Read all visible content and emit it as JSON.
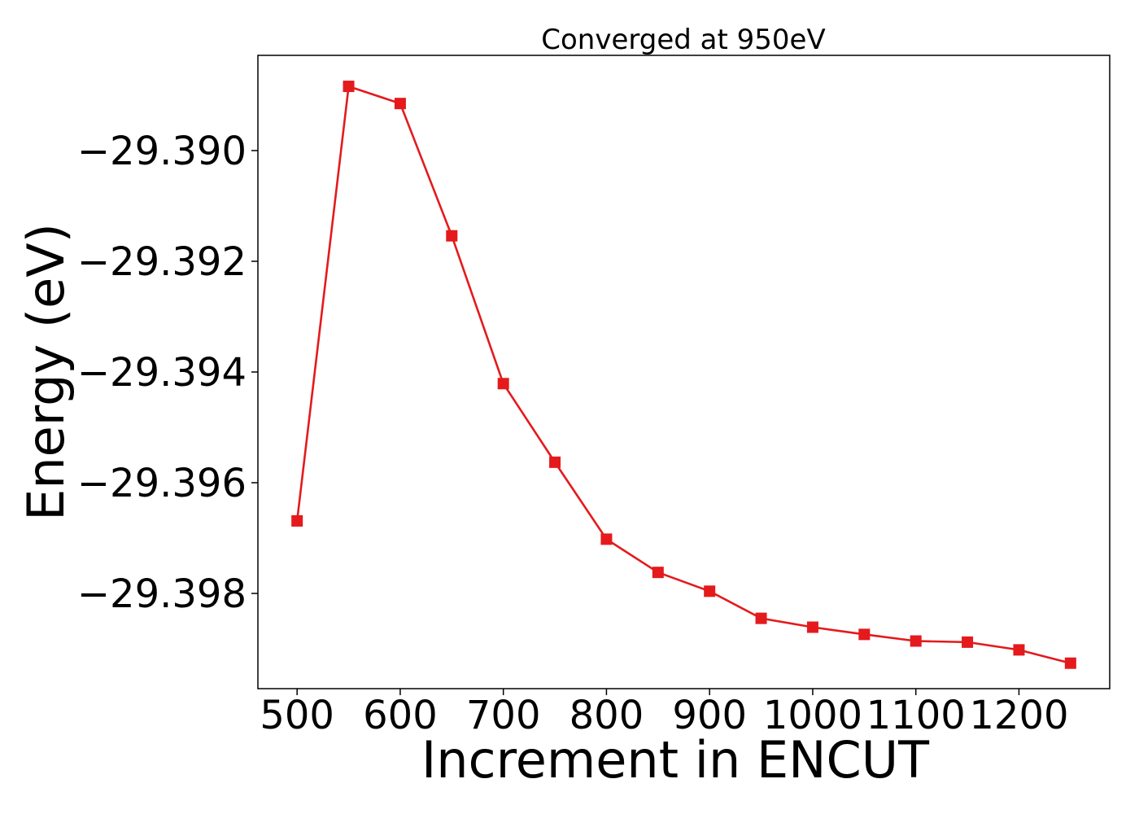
{
  "chart_data": {
    "type": "line",
    "title": "Converged at 950eV",
    "xlabel": "Increment in ENCUT",
    "ylabel": "Energy (eV)",
    "xlim": [
      462,
      1288
    ],
    "ylim": [
      -29.39972,
      -29.38828
    ],
    "x_ticks": [
      500,
      600,
      700,
      800,
      900,
      1000,
      1100,
      1200
    ],
    "x_tick_labels": [
      "500",
      "600",
      "700",
      "800",
      "900",
      "1000",
      "1100",
      "1200"
    ],
    "y_ticks": [
      -29.39,
      -29.392,
      -29.394,
      -29.396,
      -29.398
    ],
    "y_tick_labels": [
      "−29.390",
      "−29.392",
      "−29.394",
      "−29.396",
      "−29.398"
    ],
    "grid": false,
    "marker": "square",
    "color": "#e41a1c",
    "series": [
      {
        "x": [
          500,
          550,
          600,
          650,
          700,
          750,
          800,
          850,
          900,
          950,
          1000,
          1050,
          1100,
          1150,
          1200,
          1250
        ],
        "y": [
          -29.39669,
          -29.38884,
          -29.38915,
          -29.39154,
          -29.39421,
          -29.39563,
          -29.39702,
          -29.39762,
          -29.39796,
          -29.39845,
          -29.39861,
          -29.39874,
          -29.39886,
          -29.39888,
          -29.39902,
          -29.39926
        ]
      }
    ]
  }
}
